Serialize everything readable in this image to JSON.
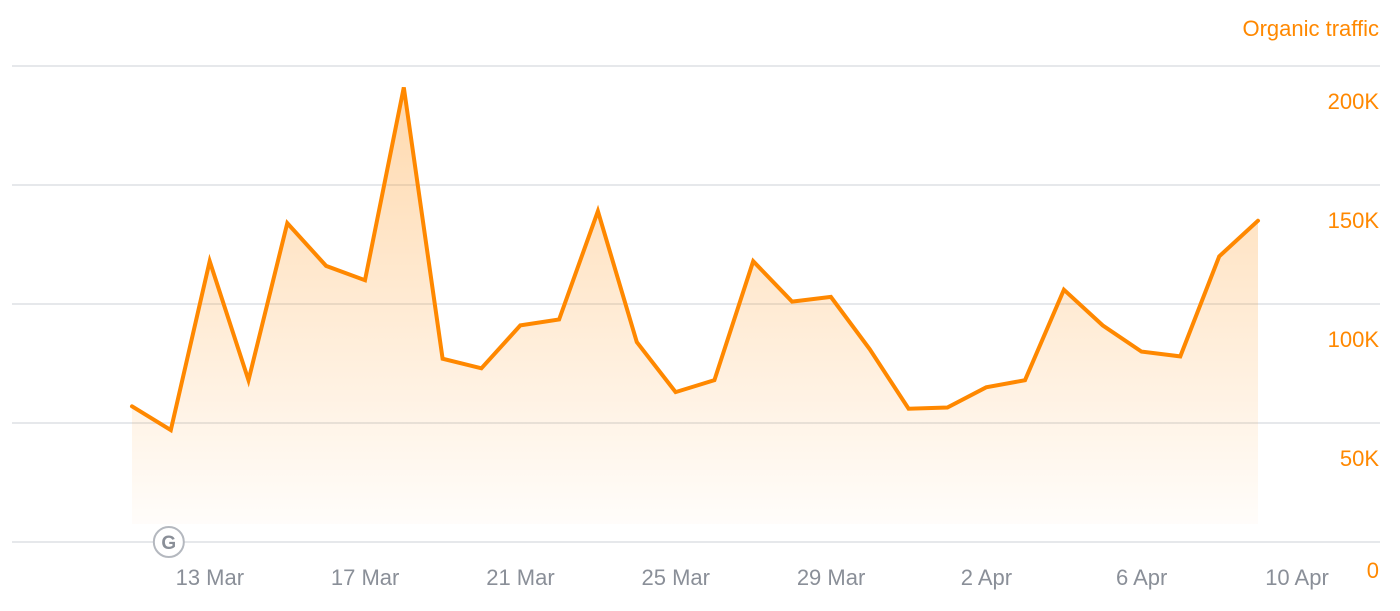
{
  "chart_data": {
    "type": "area",
    "series_label": "Organic traffic",
    "x_tick_labels": [
      "13 Mar",
      "17 Mar",
      "21 Mar",
      "25 Mar",
      "29 Mar",
      "2 Apr",
      "6 Apr",
      "10 Apr"
    ],
    "y_tick_labels": [
      "0",
      "50K",
      "100K",
      "150K",
      "200K"
    ],
    "ylim": [
      0,
      200000
    ],
    "x_range": [
      "12 Mar",
      "10 Apr"
    ],
    "grid": true,
    "colors": {
      "line": "#ff8800",
      "fill": "#ff8800",
      "axis_text": "#8a8f98",
      "grid": "#e6e8eb"
    },
    "annotations": [
      {
        "date": "13 Mar",
        "label": "G",
        "icon": "google-icon"
      }
    ],
    "series": [
      {
        "color": "#ff8800",
        "points": [
          {
            "date": "12 Mar",
            "value": 57000
          },
          {
            "date": "13 Mar",
            "value": 47000
          },
          {
            "date": "14 Mar",
            "value": 118000
          },
          {
            "date": "15 Mar",
            "value": 68000
          },
          {
            "date": "16 Mar",
            "value": 134000
          },
          {
            "date": "17 Mar",
            "value": 116000
          },
          {
            "date": "18 Mar",
            "value": 110000
          },
          {
            "date": "19 Mar",
            "value": 191000
          },
          {
            "date": "20 Mar",
            "value": 77000
          },
          {
            "date": "21 Mar",
            "value": 73000
          },
          {
            "date": "22 Mar",
            "value": 91000
          },
          {
            "date": "23 Mar",
            "value": 93500
          },
          {
            "date": "24 Mar",
            "value": 139000
          },
          {
            "date": "25 Mar",
            "value": 84000
          },
          {
            "date": "26 Mar",
            "value": 63000
          },
          {
            "date": "27 Mar",
            "value": 68000
          },
          {
            "date": "28 Mar",
            "value": 118000
          },
          {
            "date": "29 Mar",
            "value": 101000
          },
          {
            "date": "30 Mar",
            "value": 103000
          },
          {
            "date": "31 Mar",
            "value": 81000
          },
          {
            "date": "1 Apr",
            "value": 56000
          },
          {
            "date": "2 Apr",
            "value": 56500
          },
          {
            "date": "3 Apr",
            "value": 65000
          },
          {
            "date": "4 Apr",
            "value": 68000
          },
          {
            "date": "5 Apr",
            "value": 106000
          },
          {
            "date": "6 Apr",
            "value": 91000
          },
          {
            "date": "7 Apr",
            "value": 80000
          },
          {
            "date": "8 Apr",
            "value": 78000
          },
          {
            "date": "9 Apr",
            "value": 120000
          },
          {
            "date": "10 Apr",
            "value": 135000
          }
        ]
      }
    ]
  }
}
